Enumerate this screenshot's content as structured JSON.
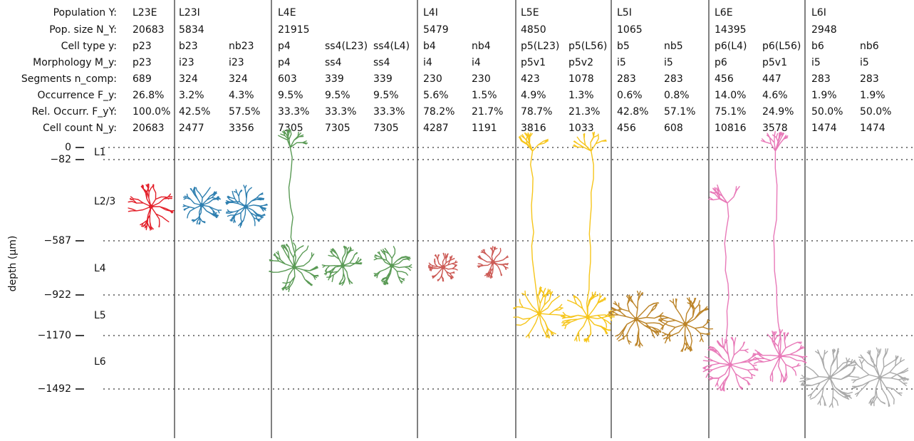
{
  "row_labels": [
    "Population Y:",
    "Pop. size N_Y:",
    "Cell type y:",
    "Morphology M_y:",
    "Segments n_comp:",
    "Occurrence F_y:",
    "Rel. Occurr. F_yY:",
    "Cell count N_y:"
  ],
  "populations": [
    {
      "name": "L23E",
      "size": "20683",
      "cell_types": [
        {
          "type": "p23",
          "morphology": "p23",
          "segments": "689",
          "occurrence": "26.8%",
          "rel_occurrence": "100.0%",
          "count": "20683"
        }
      ]
    },
    {
      "name": "L23I",
      "size": "5834",
      "cell_types": [
        {
          "type": "b23",
          "morphology": "i23",
          "segments": "324",
          "occurrence": "3.2%",
          "rel_occurrence": "42.5%",
          "count": "2477"
        },
        {
          "type": "nb23",
          "morphology": "i23",
          "segments": "324",
          "occurrence": "4.3%",
          "rel_occurrence": "57.5%",
          "count": "3356"
        }
      ]
    },
    {
      "name": "L4E",
      "size": "21915",
      "cell_types": [
        {
          "type": "p4",
          "morphology": "p4",
          "segments": "603",
          "occurrence": "9.5%",
          "rel_occurrence": "33.3%",
          "count": "7305"
        },
        {
          "type": "ss4(L23)",
          "morphology": "ss4",
          "segments": "339",
          "occurrence": "9.5%",
          "rel_occurrence": "33.3%",
          "count": "7305"
        },
        {
          "type": "ss4(L4)",
          "morphology": "ss4",
          "segments": "339",
          "occurrence": "9.5%",
          "rel_occurrence": "33.3%",
          "count": "7305"
        }
      ]
    },
    {
      "name": "L4I",
      "size": "5479",
      "cell_types": [
        {
          "type": "b4",
          "morphology": "i4",
          "segments": "230",
          "occurrence": "5.6%",
          "rel_occurrence": "78.2%",
          "count": "4287"
        },
        {
          "type": "nb4",
          "morphology": "i4",
          "segments": "230",
          "occurrence": "1.5%",
          "rel_occurrence": "21.7%",
          "count": "1191"
        }
      ]
    },
    {
      "name": "L5E",
      "size": "4850",
      "cell_types": [
        {
          "type": "p5(L23)",
          "morphology": "p5v1",
          "segments": "423",
          "occurrence": "4.9%",
          "rel_occurrence": "78.7%",
          "count": "3816"
        },
        {
          "type": "p5(L56)",
          "morphology": "p5v2",
          "segments": "1078",
          "occurrence": "1.3%",
          "rel_occurrence": "21.3%",
          "count": "1033"
        }
      ]
    },
    {
      "name": "L5I",
      "size": "1065",
      "cell_types": [
        {
          "type": "b5",
          "morphology": "i5",
          "segments": "283",
          "occurrence": "0.6%",
          "rel_occurrence": "42.8%",
          "count": "456"
        },
        {
          "type": "nb5",
          "morphology": "i5",
          "segments": "283",
          "occurrence": "0.8%",
          "rel_occurrence": "57.1%",
          "count": "608"
        }
      ]
    },
    {
      "name": "L6E",
      "size": "14395",
      "cell_types": [
        {
          "type": "p6(L4)",
          "morphology": "p6",
          "segments": "456",
          "occurrence": "14.0%",
          "rel_occurrence": "75.1%",
          "count": "10816"
        },
        {
          "type": "p6(L56)",
          "morphology": "p5v1",
          "segments": "447",
          "occurrence": "4.6%",
          "rel_occurrence": "24.9%",
          "count": "3578"
        }
      ]
    },
    {
      "name": "L6I",
      "size": "2948",
      "cell_types": [
        {
          "type": "b6",
          "morphology": "i5",
          "segments": "283",
          "occurrence": "1.9%",
          "rel_occurrence": "50.0%",
          "count": "1474"
        },
        {
          "type": "nb6",
          "morphology": "i5",
          "segments": "283",
          "occurrence": "1.9%",
          "rel_occurrence": "50.0%",
          "count": "1474"
        }
      ]
    }
  ],
  "depth_axis": {
    "label": "depth (μm)",
    "ticks": [
      "0",
      "−82",
      "−587",
      "−922",
      "−1170",
      "−1492"
    ],
    "layers": [
      "L1",
      "L2/3",
      "L4",
      "L5",
      "L6"
    ]
  }
}
